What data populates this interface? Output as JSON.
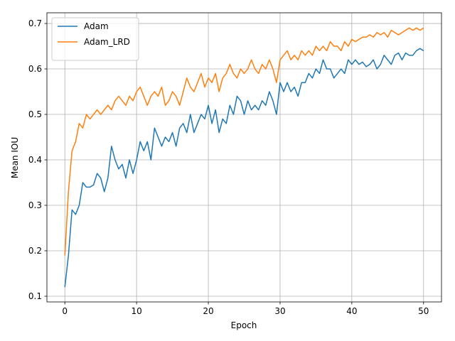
{
  "chart_data": {
    "type": "line",
    "xlabel": "Epoch",
    "ylabel": "Mean IOU",
    "x": [
      0,
      0.5,
      1,
      1.5,
      2,
      2.5,
      3,
      3.5,
      4,
      4.5,
      5,
      5.5,
      6,
      6.5,
      7,
      7.5,
      8,
      8.5,
      9,
      9.5,
      10,
      10.5,
      11,
      11.5,
      12,
      12.5,
      13,
      13.5,
      14,
      14.5,
      15,
      15.5,
      16,
      16.5,
      17,
      17.5,
      18,
      18.5,
      19,
      19.5,
      20,
      20.5,
      21,
      21.5,
      22,
      22.5,
      23,
      23.5,
      24,
      24.5,
      25,
      25.5,
      26,
      26.5,
      27,
      27.5,
      28,
      28.5,
      29,
      29.5,
      30,
      30.5,
      31,
      31.5,
      32,
      32.5,
      33,
      33.5,
      34,
      34.5,
      35,
      35.5,
      36,
      36.5,
      37,
      37.5,
      38,
      38.5,
      39,
      39.5,
      40,
      40.5,
      41,
      41.5,
      42,
      42.5,
      43,
      43.5,
      44,
      44.5,
      45,
      45.5,
      46,
      46.5,
      47,
      47.5,
      48,
      48.5,
      49,
      49.5,
      50
    ],
    "series": [
      {
        "name": "Adam",
        "color": "#1f77b4",
        "values": [
          0.12,
          0.19,
          0.29,
          0.28,
          0.3,
          0.35,
          0.34,
          0.34,
          0.345,
          0.37,
          0.36,
          0.33,
          0.36,
          0.43,
          0.4,
          0.38,
          0.39,
          0.36,
          0.4,
          0.37,
          0.4,
          0.44,
          0.42,
          0.44,
          0.4,
          0.47,
          0.45,
          0.43,
          0.45,
          0.44,
          0.46,
          0.43,
          0.47,
          0.48,
          0.46,
          0.5,
          0.46,
          0.48,
          0.5,
          0.49,
          0.52,
          0.48,
          0.51,
          0.46,
          0.49,
          0.48,
          0.52,
          0.5,
          0.54,
          0.53,
          0.5,
          0.53,
          0.51,
          0.52,
          0.51,
          0.53,
          0.52,
          0.55,
          0.53,
          0.5,
          0.57,
          0.55,
          0.57,
          0.55,
          0.56,
          0.54,
          0.57,
          0.57,
          0.59,
          0.58,
          0.6,
          0.59,
          0.62,
          0.6,
          0.6,
          0.58,
          0.59,
          0.6,
          0.59,
          0.62,
          0.61,
          0.62,
          0.61,
          0.615,
          0.605,
          0.61,
          0.62,
          0.6,
          0.61,
          0.63,
          0.62,
          0.61,
          0.63,
          0.635,
          0.62,
          0.635,
          0.63,
          0.63,
          0.64,
          0.645,
          0.64
        ]
      },
      {
        "name": "Adam_LRD",
        "color": "#ff7f0e",
        "values": [
          0.19,
          0.33,
          0.42,
          0.44,
          0.48,
          0.47,
          0.5,
          0.49,
          0.5,
          0.51,
          0.5,
          0.51,
          0.52,
          0.51,
          0.53,
          0.54,
          0.53,
          0.52,
          0.54,
          0.53,
          0.55,
          0.56,
          0.54,
          0.52,
          0.54,
          0.55,
          0.54,
          0.56,
          0.52,
          0.53,
          0.55,
          0.54,
          0.52,
          0.55,
          0.58,
          0.56,
          0.55,
          0.57,
          0.59,
          0.56,
          0.58,
          0.57,
          0.59,
          0.55,
          0.58,
          0.59,
          0.61,
          0.59,
          0.58,
          0.6,
          0.59,
          0.6,
          0.62,
          0.6,
          0.59,
          0.61,
          0.6,
          0.62,
          0.6,
          0.57,
          0.62,
          0.63,
          0.64,
          0.62,
          0.63,
          0.62,
          0.64,
          0.63,
          0.64,
          0.63,
          0.65,
          0.64,
          0.65,
          0.64,
          0.66,
          0.65,
          0.65,
          0.64,
          0.66,
          0.65,
          0.665,
          0.66,
          0.665,
          0.67,
          0.67,
          0.675,
          0.67,
          0.68,
          0.675,
          0.68,
          0.67,
          0.685,
          0.68,
          0.675,
          0.68,
          0.685,
          0.69,
          0.685,
          0.69,
          0.685,
          0.69
        ]
      }
    ],
    "xlim": [
      -2.5,
      52.5
    ],
    "xticks": [
      0,
      10,
      20,
      30,
      40,
      50
    ],
    "ylim": [
      0.0875,
      0.7235
    ],
    "yticks": [
      0.1,
      0.2,
      0.3,
      0.4,
      0.5,
      0.6,
      0.7
    ],
    "grid": true,
    "legend": "upper left"
  }
}
